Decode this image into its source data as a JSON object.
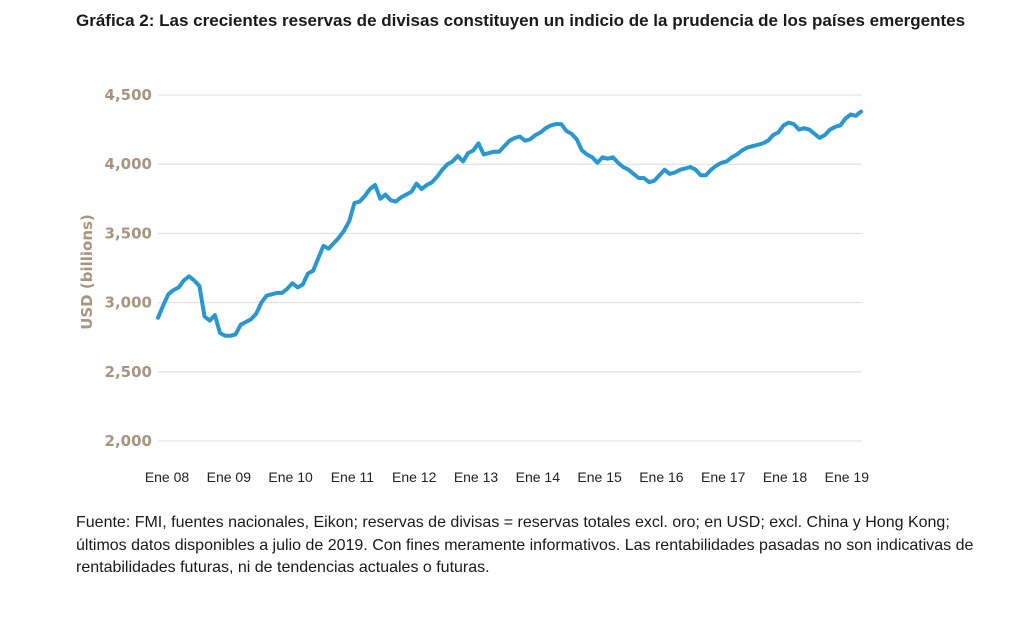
{
  "title": "Gráfica 2: Las crecientes reservas de divisas constituyen un indicio de la prudencia de los países emergentes",
  "source_note": "Fuente: FMI, fuentes nacionales, Eikon; reservas de divisas = reservas totales excl. oro; en USD; excl. China y Hong Kong; últimos datos disponibles a julio de 2019. Con fines meramente informativos. Las rentabilidades pasadas no son indicativas de rentabilidades futuras, ni de tendencias actuales o futuras.",
  "colors": {
    "line": "#2a97d0",
    "grid": "#dcdcdc",
    "axis_text": "#a89580"
  },
  "chart_data": {
    "type": "line",
    "title": "",
    "xlabel": "",
    "ylabel": "USD (billions)",
    "ylim": [
      2000,
      4500
    ],
    "y_ticks": [
      {
        "value": 4500,
        "label": "4,500"
      },
      {
        "value": 4000,
        "label": "4,000"
      },
      {
        "value": 3500,
        "label": "3,500"
      },
      {
        "value": 3000,
        "label": "3,000"
      },
      {
        "value": 2500,
        "label": "2,500"
      },
      {
        "value": 2000,
        "label": "2,000"
      }
    ],
    "x_ticks": [
      "Ene 08",
      "Ene 09",
      "Ene 10",
      "Ene 11",
      "Ene 12",
      "Ene 13",
      "Ene 14",
      "Ene 15",
      "Ene 16",
      "Ene 17",
      "Ene 18",
      "Ene 19"
    ],
    "x_start": "2008-01",
    "grid": true,
    "series": [
      {
        "values": [
          2890,
          2980,
          3060,
          3090,
          3110,
          3160,
          3190,
          3160,
          3120,
          2900,
          2870,
          2910,
          2780,
          2760,
          2760,
          2770,
          2840,
          2860,
          2880,
          2920,
          3000,
          3050,
          3060,
          3070,
          3070,
          3100,
          3140,
          3110,
          3130,
          3210,
          3230,
          3320,
          3410,
          3390,
          3430,
          3470,
          3520,
          3590,
          3720,
          3730,
          3770,
          3820,
          3850,
          3750,
          3780,
          3740,
          3730,
          3760,
          3780,
          3800,
          3860,
          3820,
          3850,
          3870,
          3910,
          3960,
          4000,
          4020,
          4060,
          4020,
          4080,
          4100,
          4150,
          4070,
          4080,
          4090,
          4090,
          4130,
          4170,
          4190,
          4200,
          4170,
          4180,
          4210,
          4230,
          4260,
          4280,
          4290,
          4290,
          4240,
          4220,
          4180,
          4100,
          4070,
          4050,
          4010,
          4050,
          4040,
          4050,
          4010,
          3980,
          3960,
          3930,
          3900,
          3900,
          3870,
          3880,
          3920,
          3960,
          3930,
          3940,
          3960,
          3970,
          3980,
          3960,
          3920,
          3920,
          3960,
          3990,
          4010,
          4020,
          4050,
          4070,
          4100,
          4120,
          4130,
          4140,
          4150,
          4170,
          4210,
          4230,
          4280,
          4300,
          4290,
          4250,
          4260,
          4250,
          4220,
          4190,
          4210,
          4250,
          4270,
          4280,
          4330,
          4360,
          4350,
          4380
        ]
      }
    ]
  }
}
